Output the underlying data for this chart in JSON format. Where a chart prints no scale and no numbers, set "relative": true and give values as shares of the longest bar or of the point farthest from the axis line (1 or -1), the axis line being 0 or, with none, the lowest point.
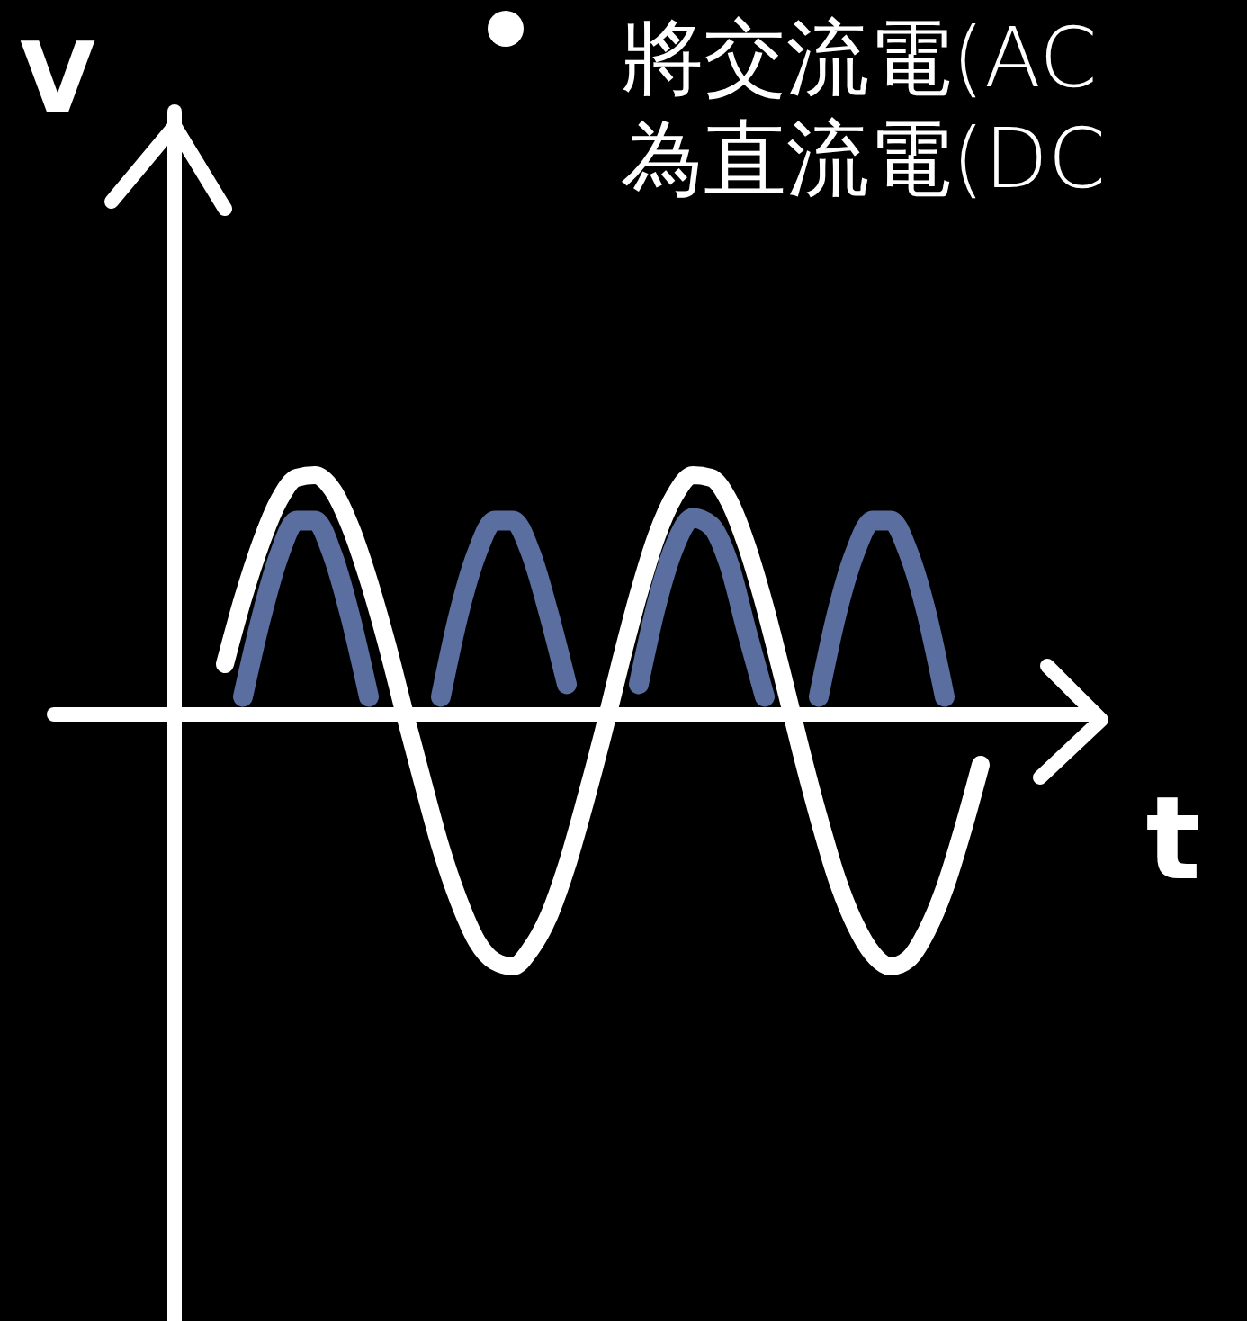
{
  "chart_data": {
    "type": "line",
    "relative": true,
    "xlabel": "t",
    "ylabel": "V",
    "annotations": [
      "將交流電(AC",
      "為直流電(DC"
    ],
    "categories": [
      null,
      null,
      null,
      null,
      null,
      null,
      null,
      null,
      null,
      null,
      null,
      null,
      null,
      null,
      null,
      null,
      null,
      null,
      null,
      null,
      null,
      null,
      null,
      null,
      null,
      null,
      null,
      null,
      null,
      null,
      null,
      null,
      null,
      null,
      null,
      null,
      null,
      null,
      null,
      null,
      null,
      null,
      null,
      null,
      null
    ],
    "series": [
      {
        "color": "#ffffff",
        "values": [
          null,
          0.2,
          0.46,
          0.68,
          0.85,
          0.94,
          0.95,
          0.89,
          0.74,
          0.53,
          0.28,
          0,
          -0.27,
          -0.53,
          -0.74,
          -0.9,
          -0.98,
          -1,
          -0.93,
          -0.8,
          -0.6,
          -0.35,
          -0.08,
          0.21,
          0.48,
          0.71,
          0.87,
          0.95,
          0.94,
          0.85,
          0.67,
          0.43,
          0.15,
          -0.14,
          -0.41,
          -0.65,
          -0.83,
          -0.95,
          -1,
          -0.97,
          -0.86,
          -0.69,
          -0.46,
          -0.2,
          null
        ]
      },
      {
        "color": "#5a6fa0",
        "values": [
          null,
          null,
          0.07,
          0.38,
          0.63,
          0.77,
          0.77,
          0.63,
          0.38,
          0.07,
          null,
          null,
          null,
          0.07,
          0.4,
          0.64,
          0.77,
          0.77,
          0.64,
          0.4,
          0.12,
          null,
          null,
          null,
          0.12,
          0.44,
          0.67,
          0.78,
          0.75,
          0.6,
          0.33,
          0.07,
          null,
          null,
          0.07,
          0.4,
          0.64,
          0.77,
          0.77,
          0.64,
          0.4,
          0.07,
          null,
          null,
          null
        ]
      }
    ]
  }
}
